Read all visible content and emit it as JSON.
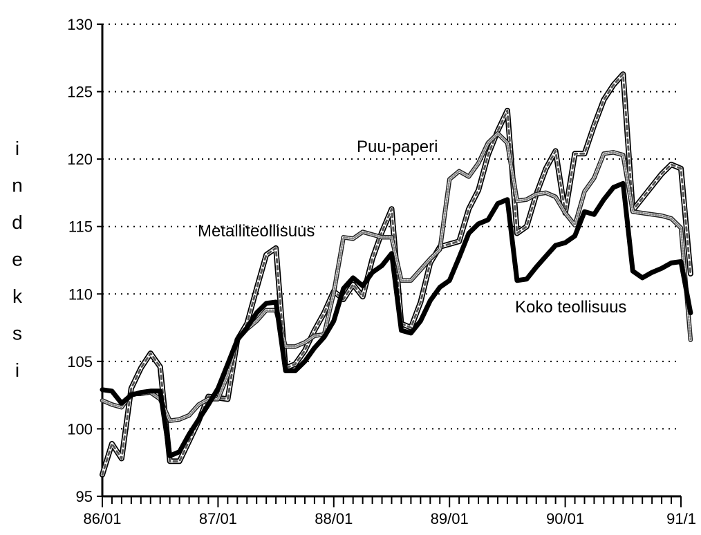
{
  "chart_data": {
    "type": "line",
    "ylabel": "indeksi",
    "xlabel": "",
    "title": "",
    "ylim": [
      95,
      130
    ],
    "yticks": [
      95,
      100,
      105,
      110,
      115,
      120,
      125,
      130
    ],
    "xticks": [
      "86/01",
      "87/01",
      "88/01",
      "89/01",
      "90/01",
      "91/1"
    ],
    "grid": "horizontal dotted",
    "annotations": [
      "Puu-paperi",
      "Metalliteollisuus",
      "Koko teollisuus"
    ],
    "series": [
      {
        "name": "Koko teollisuus",
        "style": "thick-black",
        "values": [
          102.9,
          102.8,
          101.9,
          102.5,
          102.7,
          102.8,
          102.8,
          98.0,
          98.3,
          99.6,
          100.7,
          101.8,
          103.0,
          104.8,
          106.6,
          107.5,
          108.6,
          109.3,
          109.4,
          104.3,
          104.3,
          105.0,
          106.0,
          106.8,
          108.0,
          110.4,
          111.2,
          110.6,
          111.6,
          112.1,
          113.0,
          107.3,
          107.1,
          108.0,
          109.5,
          110.5,
          111.0,
          112.7,
          114.5,
          115.2,
          115.5,
          116.7,
          117.0,
          111.0,
          111.1,
          112.0,
          112.8,
          113.6,
          113.8,
          114.3,
          116.1,
          115.9,
          117.0,
          117.9,
          118.2,
          111.7,
          111.2,
          111.6,
          111.9,
          112.3,
          112.4,
          108.6
        ]
      },
      {
        "name": "Metalliteollisuus",
        "style": "dotted-grey",
        "values": [
          102.1,
          101.8,
          101.6,
          102.6,
          102.6,
          102.7,
          102.2,
          100.6,
          100.7,
          101.0,
          101.8,
          102.2,
          102.2,
          104.0,
          106.6,
          107.4,
          108.0,
          108.8,
          108.8,
          106.1,
          106.1,
          106.4,
          106.9,
          107.0,
          110.1,
          114.2,
          114.1,
          114.6,
          114.4,
          114.2,
          114.2,
          111.0,
          111.0,
          111.8,
          112.6,
          113.3,
          118.5,
          119.1,
          118.7,
          119.7,
          121.2,
          121.9,
          121.2,
          116.9,
          117.0,
          117.4,
          117.5,
          117.2,
          116.0,
          115.1,
          117.6,
          118.6,
          120.4,
          120.5,
          120.3,
          116.1,
          116.0,
          115.9,
          115.8,
          115.6,
          114.9,
          106.6
        ]
      },
      {
        "name": "Puu-paperi",
        "style": "hatched-double",
        "values": [
          96.6,
          98.9,
          97.8,
          103.0,
          104.5,
          105.6,
          104.6,
          97.6,
          97.6,
          99.1,
          100.6,
          102.4,
          102.3,
          102.2,
          106.6,
          107.8,
          110.4,
          112.9,
          113.4,
          104.5,
          104.8,
          105.8,
          107.3,
          108.6,
          110.2,
          109.6,
          110.7,
          109.8,
          112.6,
          114.6,
          116.3,
          107.8,
          107.5,
          109.4,
          112.3,
          113.5,
          113.7,
          113.9,
          116.3,
          117.7,
          120.3,
          122.1,
          123.6,
          114.5,
          115.0,
          117.4,
          119.3,
          120.6,
          116.0,
          120.4,
          120.4,
          122.5,
          124.4,
          125.5,
          126.3,
          116.2,
          117.1,
          118.0,
          118.9,
          119.6,
          119.3,
          111.5
        ]
      }
    ]
  }
}
